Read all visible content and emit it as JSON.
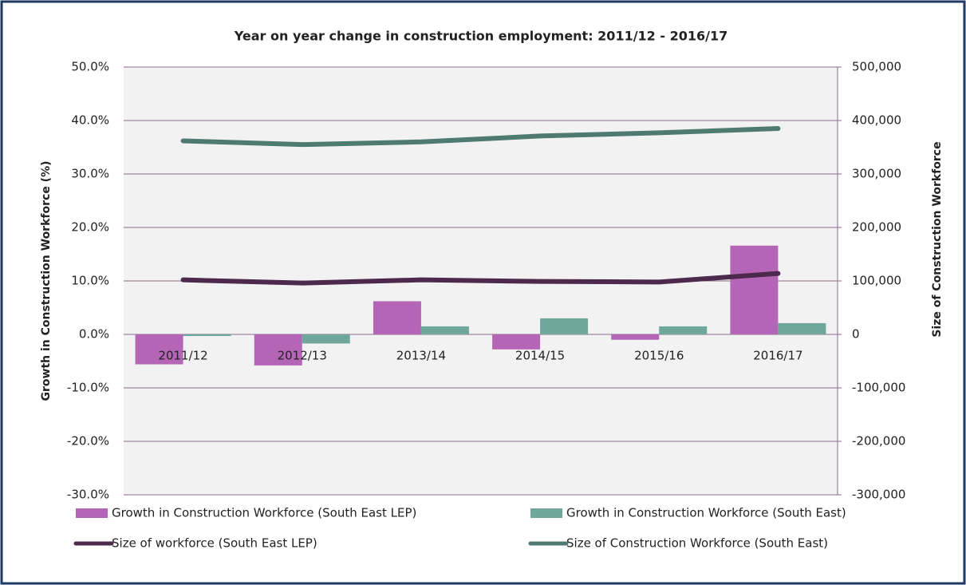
{
  "chart_data": {
    "type": "bar",
    "title": "Year on year change in construction employment: 2011/12 - 2016/17",
    "y_label": "Growth in Construction Workforce (%)",
    "y2_label": "Size of Construction Workforce",
    "categories": [
      "2011/12",
      "2012/13",
      "2013/14",
      "2014/15",
      "2015/16",
      "2016/17"
    ],
    "series": [
      {
        "name": "Growth in Construction Workforce (South East LEP)",
        "type": "bar",
        "color": "#b565b5",
        "values": [
          -5.6,
          -5.8,
          6.2,
          -2.8,
          -1.0,
          16.6
        ]
      },
      {
        "name": "Growth in Construction Workforce (South East)",
        "type": "bar",
        "color": "#6fa79c",
        "values": [
          -0.3,
          -1.7,
          1.5,
          3.0,
          1.5,
          2.1
        ]
      },
      {
        "name": "Size of workforce (South East LEP)",
        "type": "line",
        "axis": "y2",
        "color": "#4d2a4d",
        "values": [
          102000,
          96000,
          102000,
          99000,
          98000,
          114000
        ]
      },
      {
        "name": "Size of Construction Workforce (South East)",
        "type": "line",
        "axis": "y2",
        "color": "#4e7a72",
        "values": [
          362000,
          355000,
          360000,
          371000,
          377000,
          385000
        ]
      }
    ],
    "ylim": [
      -30,
      50
    ],
    "yticks": [
      {
        "value": -30,
        "label": "-30.0%"
      },
      {
        "value": -20,
        "label": "-20.0%"
      },
      {
        "value": -10,
        "label": "-10.0%"
      },
      {
        "value": 0,
        "label": "0.0%"
      },
      {
        "value": 10,
        "label": "10.0%"
      },
      {
        "value": 20,
        "label": "20.0%"
      },
      {
        "value": 30,
        "label": "30.0%"
      },
      {
        "value": 40,
        "label": "40.0%"
      },
      {
        "value": 50,
        "label": "50.0%"
      }
    ],
    "y2lim": [
      -300000,
      500000
    ],
    "y2ticks": [
      {
        "value": -300000,
        "label": "-300,000"
      },
      {
        "value": -200000,
        "label": "-200,000"
      },
      {
        "value": -100000,
        "label": "-100,000"
      },
      0,
      {
        "value": 100000,
        "label": "100,000"
      },
      {
        "value": 200000,
        "label": "200,000"
      },
      {
        "value": 300000,
        "label": "300,000"
      },
      {
        "value": 400000,
        "label": "400,000"
      },
      {
        "value": 500000,
        "label": "500,000"
      }
    ],
    "grid": true,
    "legend": "bottom"
  }
}
